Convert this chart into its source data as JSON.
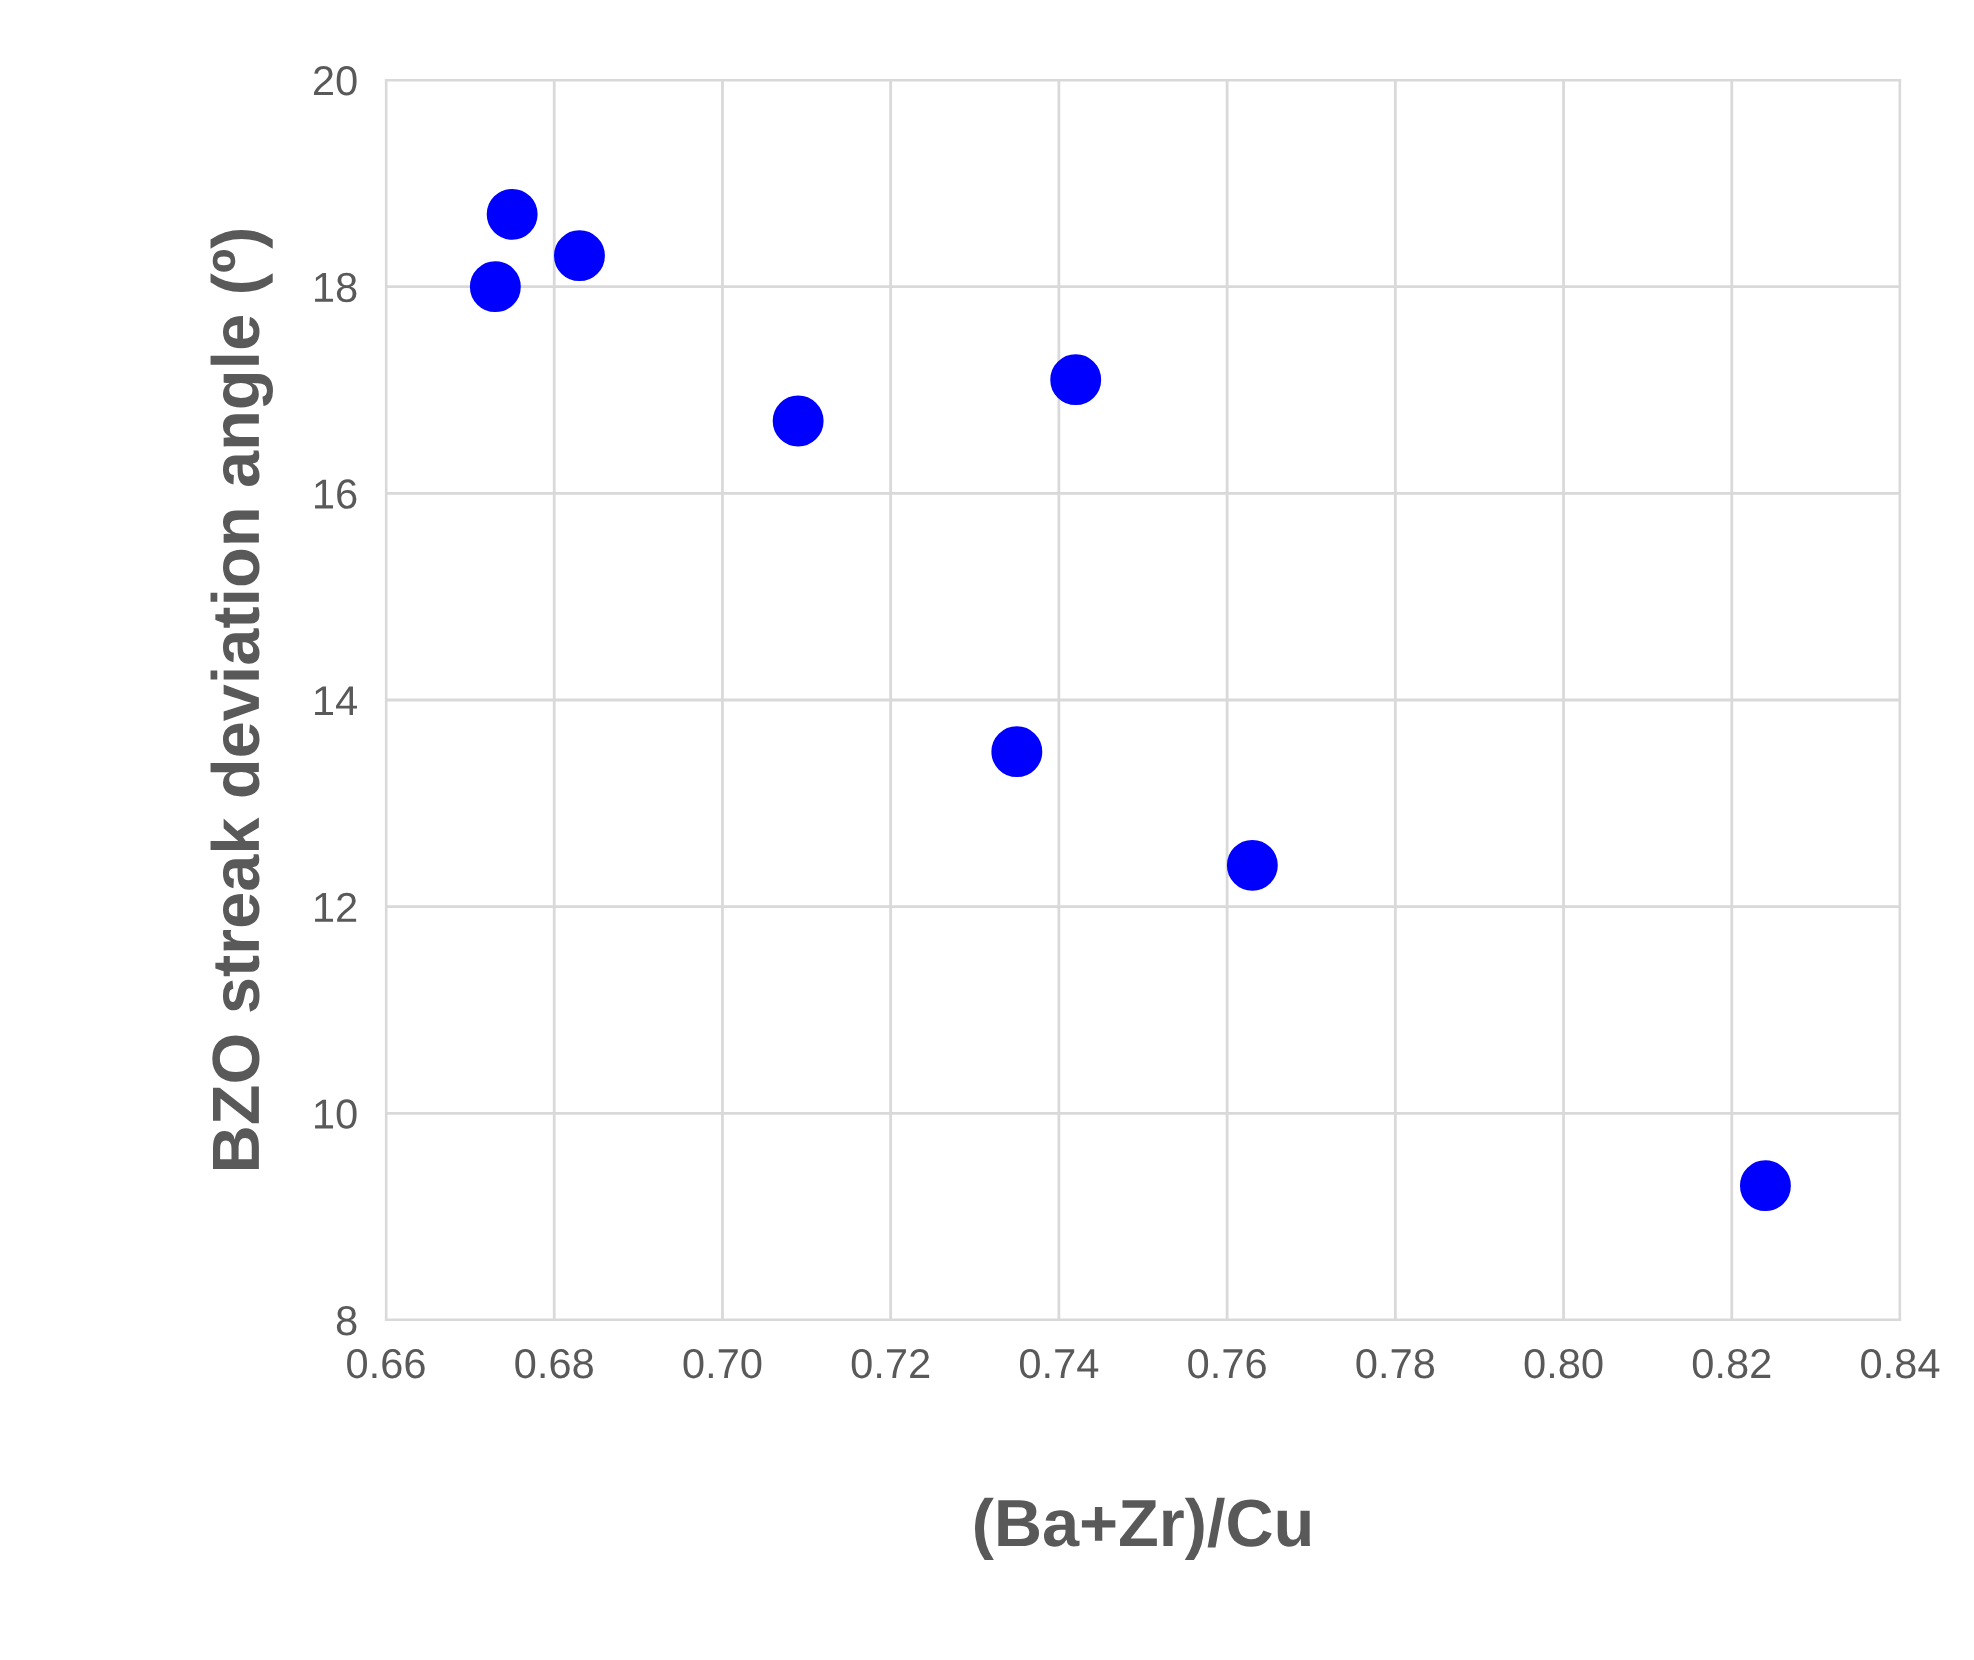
{
  "chart_data": {
    "type": "scatter",
    "xlabel": "(Ba+Zr)/Cu",
    "ylabel": "BZO streak deviation angle (º)",
    "x": [
      0.673,
      0.675,
      0.683,
      0.709,
      0.742,
      0.735,
      0.763,
      0.824
    ],
    "series": [
      {
        "color": "#0000ff",
        "values": [
          18.0,
          18.7,
          18.3,
          16.7,
          17.1,
          13.5,
          12.4,
          9.3
        ]
      }
    ],
    "xlim": [
      0.66,
      0.84
    ],
    "xticks": [
      {
        "value": 0.66,
        "label": "0.66"
      },
      {
        "value": 0.68,
        "label": "0.68"
      },
      {
        "value": 0.7,
        "label": "0.70"
      },
      {
        "value": 0.72,
        "label": "0.72"
      },
      {
        "value": 0.74,
        "label": "0.74"
      },
      {
        "value": 0.76,
        "label": "0.76"
      },
      {
        "value": 0.78,
        "label": "0.78"
      },
      {
        "value": 0.8,
        "label": "0.80"
      },
      {
        "value": 0.82,
        "label": "0.82"
      },
      {
        "value": 0.84,
        "label": "0.84"
      }
    ],
    "ylim": [
      8,
      20
    ],
    "yticks": [
      8,
      10,
      12,
      14,
      16,
      18,
      20
    ],
    "grid": true,
    "marker": "circle"
  }
}
